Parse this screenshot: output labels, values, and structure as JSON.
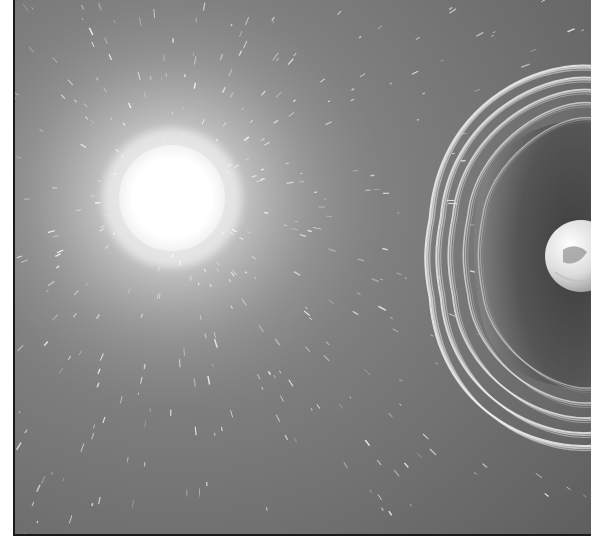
{
  "scene": {
    "subject": "",
    "colors": {
      "background": "#7a7a7a",
      "background_dark": "#5e5e5e",
      "star_core": "#ffffff",
      "field_lines": "#ededed",
      "border": "#1a1a1a"
    },
    "elements": {
      "star": "sun-glow",
      "planet": "earth-sphere",
      "field": "magnetosphere-field-lines",
      "particles": "solar-wind-streaks"
    }
  }
}
